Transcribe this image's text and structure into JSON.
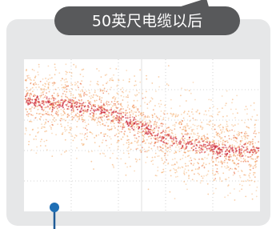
{
  "label": "50英尺电缆以后"
}
